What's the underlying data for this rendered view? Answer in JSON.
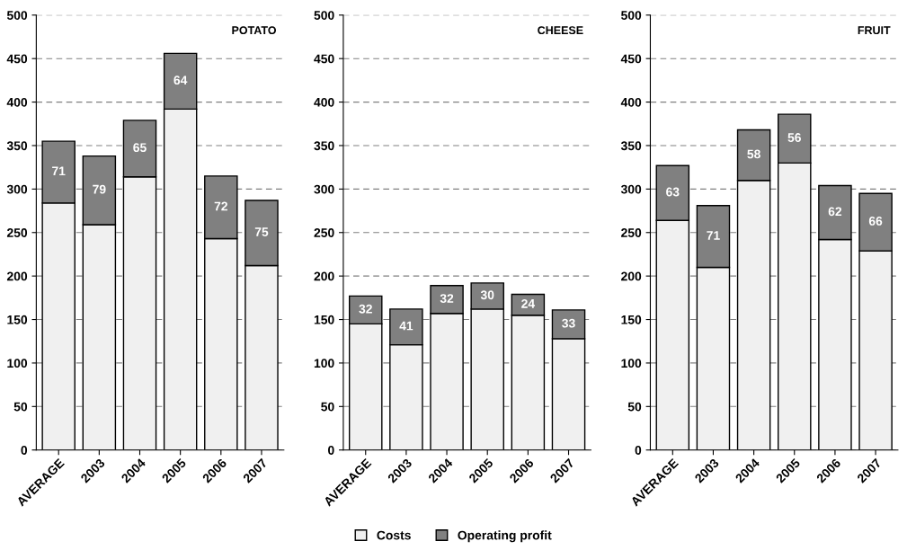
{
  "chart_data": [
    {
      "type": "bar",
      "title": "POTATO",
      "stacked": true,
      "categories": [
        "AVERAGE",
        "2003",
        "2004",
        "2005",
        "2006",
        "2007"
      ],
      "ylim": [
        0,
        500
      ],
      "yticks": [
        0,
        50,
        100,
        150,
        200,
        250,
        300,
        350,
        400,
        450,
        500
      ],
      "grid": "y",
      "legend": "bottom",
      "series": [
        {
          "name": "Costs",
          "color": "#f0f0f0",
          "values": [
            284,
            259,
            314,
            392,
            243,
            212
          ]
        },
        {
          "name": "Operating profit",
          "color": "#808080",
          "values": [
            71,
            79,
            65,
            64,
            72,
            75
          ],
          "value_labels": [
            "71",
            "79",
            "65",
            "64",
            "72",
            "75"
          ]
        }
      ]
    },
    {
      "type": "bar",
      "title": "CHEESE",
      "stacked": true,
      "categories": [
        "AVERAGE",
        "2003",
        "2004",
        "2005",
        "2006",
        "2007"
      ],
      "ylim": [
        0,
        500
      ],
      "yticks": [
        0,
        50,
        100,
        150,
        200,
        250,
        300,
        350,
        400,
        450,
        500
      ],
      "grid": "y",
      "legend": "bottom",
      "series": [
        {
          "name": "Costs",
          "color": "#f0f0f0",
          "values": [
            145,
            121,
            157,
            162,
            155,
            128
          ]
        },
        {
          "name": "Operating profit",
          "color": "#808080",
          "values": [
            32,
            41,
            32,
            30,
            24,
            33
          ],
          "value_labels": [
            "32",
            "41",
            "32",
            "30",
            "24",
            "33"
          ]
        }
      ]
    },
    {
      "type": "bar",
      "title": "FRUIT",
      "stacked": true,
      "categories": [
        "AVERAGE",
        "2003",
        "2004",
        "2005",
        "2006",
        "2007"
      ],
      "ylim": [
        0,
        500
      ],
      "yticks": [
        0,
        50,
        100,
        150,
        200,
        250,
        300,
        350,
        400,
        450,
        500
      ],
      "grid": "y",
      "legend": "bottom",
      "series": [
        {
          "name": "Costs",
          "color": "#f0f0f0",
          "values": [
            264,
            210,
            310,
            330,
            242,
            229
          ]
        },
        {
          "name": "Operating profit",
          "color": "#808080",
          "values": [
            63,
            71,
            58,
            56,
            62,
            66
          ],
          "value_labels": [
            "63",
            "71",
            "58",
            "56",
            "62",
            "66"
          ]
        }
      ]
    }
  ]
}
